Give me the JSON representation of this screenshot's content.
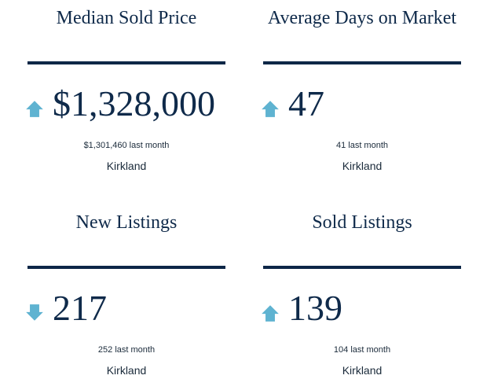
{
  "colors": {
    "heading": "#0f2a4a",
    "rule": "#0d2747",
    "arrow": "#5fb3d1",
    "text": "#1a2a3a"
  },
  "stats": [
    {
      "title": "Median Sold Price",
      "value": "$1,328,000",
      "previous": "$1,301,460 last month",
      "location": "Kirkland",
      "trend": "up",
      "trend_icon": "arrow-up-icon"
    },
    {
      "title": "Average Days on Market",
      "value": "47",
      "previous": "41 last month",
      "location": "Kirkland",
      "trend": "up",
      "trend_icon": "arrow-up-icon"
    },
    {
      "title": "New Listings",
      "value": "217",
      "previous": "252 last month",
      "location": "Kirkland",
      "trend": "down",
      "trend_icon": "arrow-down-icon"
    },
    {
      "title": "Sold Listings",
      "value": "139",
      "previous": "104 last month",
      "location": "Kirkland",
      "trend": "up",
      "trend_icon": "arrow-up-icon"
    }
  ]
}
